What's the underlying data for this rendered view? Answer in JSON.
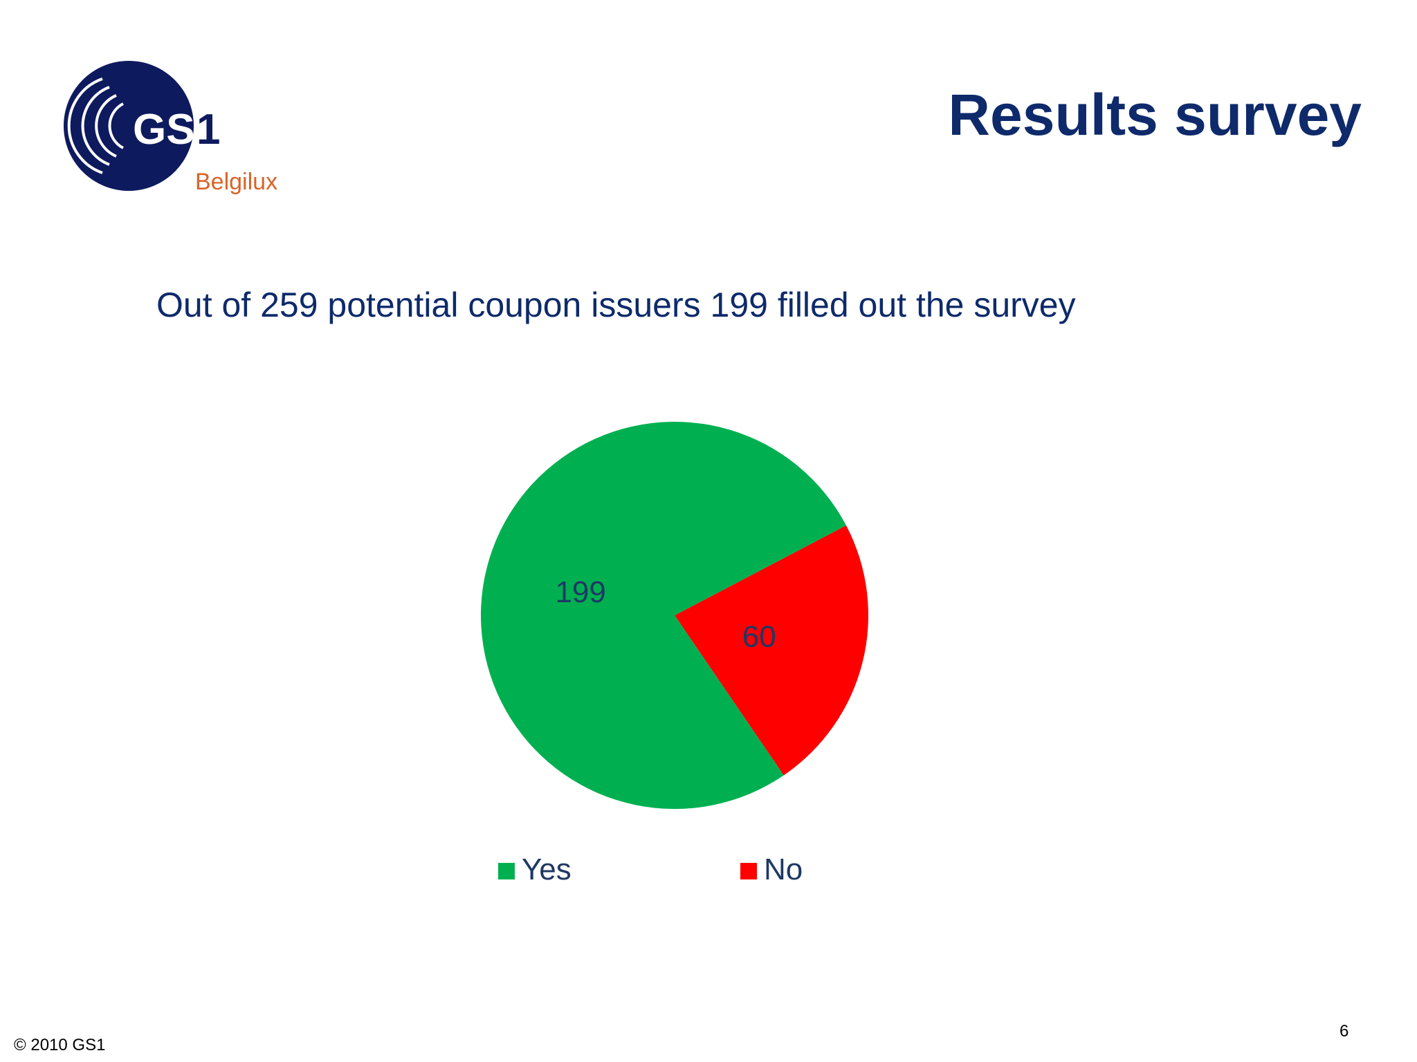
{
  "slide": {
    "title": "Results survey",
    "subtitle": "Out of 259 potential coupon issuers 199 filled out the survey",
    "copyright": "© 2010 GS1",
    "page_number": "6"
  },
  "logo": {
    "brand": "GS1",
    "region": "Belgilux",
    "colors": {
      "circle": "#0e1a5e",
      "region_text": "#d9632a"
    }
  },
  "chart_data": {
    "type": "pie",
    "categories": [
      "Yes",
      "No"
    ],
    "values": [
      199,
      60
    ],
    "data_labels": [
      "199",
      "60"
    ],
    "colors": [
      "#00b050",
      "#ff0000"
    ],
    "legend": {
      "placement": "bottom",
      "entries": [
        "Yes",
        "No"
      ]
    },
    "label_color": "#1f3864"
  }
}
